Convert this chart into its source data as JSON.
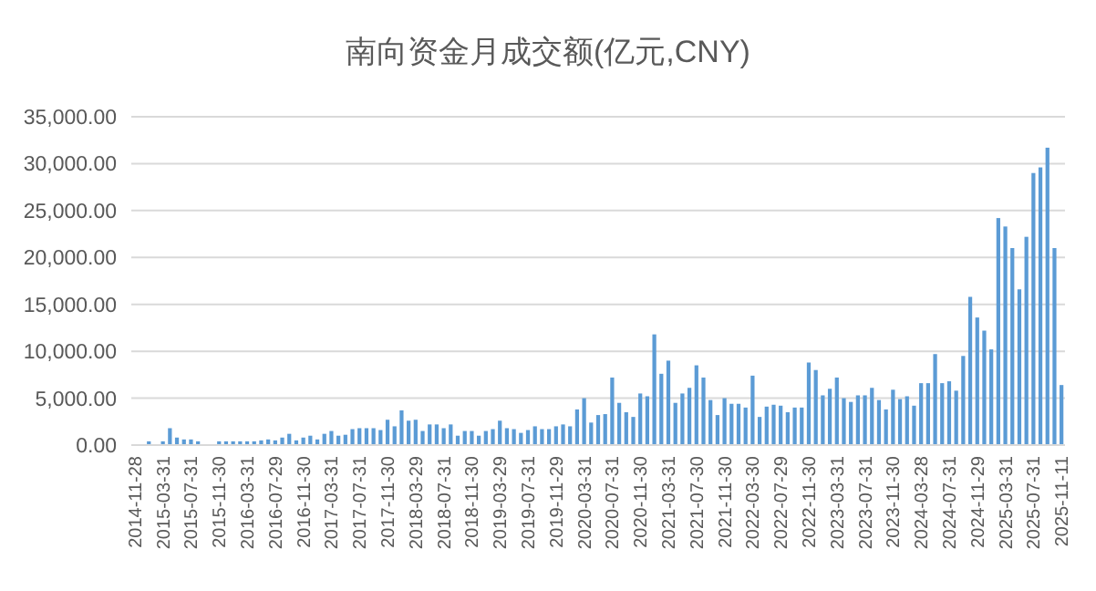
{
  "chart_data": {
    "type": "bar",
    "title": "南向资金月成交额(亿元,CNY)",
    "categories": [
      "2014-11-28",
      null,
      null,
      null,
      "2015-03-31",
      null,
      null,
      null,
      "2015-07-31",
      null,
      null,
      null,
      "2015-11-30",
      null,
      null,
      null,
      "2016-03-31",
      null,
      null,
      null,
      "2016-07-29",
      null,
      null,
      null,
      "2016-11-30",
      null,
      null,
      null,
      "2017-03-31",
      null,
      null,
      null,
      "2017-07-31",
      null,
      null,
      null,
      "2017-11-30",
      null,
      null,
      null,
      "2018-03-29",
      null,
      null,
      null,
      "2018-07-31",
      null,
      null,
      null,
      "2018-11-30",
      null,
      null,
      null,
      "2019-03-29",
      null,
      null,
      null,
      "2019-07-31",
      null,
      null,
      null,
      "2019-11-29",
      null,
      null,
      null,
      "2020-03-31",
      null,
      null,
      null,
      "2020-07-31",
      null,
      null,
      null,
      "2020-11-30",
      null,
      null,
      null,
      "2021-03-31",
      null,
      null,
      null,
      "2021-07-30",
      null,
      null,
      null,
      "2021-11-30",
      null,
      null,
      null,
      "2022-03-30",
      null,
      null,
      null,
      "2022-07-29",
      null,
      null,
      null,
      "2022-11-30",
      null,
      null,
      null,
      "2023-03-31",
      null,
      null,
      null,
      "2023-07-31",
      null,
      null,
      null,
      "2023-11-30",
      null,
      null,
      null,
      "2024-03-28",
      null,
      null,
      null,
      "2024-07-31",
      null,
      null,
      null,
      "2024-11-29",
      null,
      null,
      null,
      "2025-03-31",
      null,
      null,
      null,
      "2025-07-31",
      null,
      null,
      null,
      "2025-11-11"
    ],
    "values": [
      null,
      null,
      400,
      null,
      400,
      1800,
      800,
      600,
      600,
      400,
      null,
      null,
      400,
      400,
      400,
      400,
      400,
      400,
      500,
      600,
      500,
      800,
      1200,
      500,
      800,
      1000,
      600,
      1200,
      1500,
      1000,
      1100,
      1700,
      1800,
      1800,
      1800,
      1600,
      2700,
      2000,
      3700,
      2600,
      2700,
      1500,
      2200,
      2200,
      1800,
      2200,
      1000,
      1500,
      1500,
      1000,
      1500,
      1700,
      2600,
      1800,
      1700,
      1300,
      1600,
      2000,
      1700,
      1700,
      2000,
      2200,
      2000,
      3800,
      5000,
      2400,
      3200,
      3300,
      7200,
      4500,
      3500,
      3000,
      5500,
      5200,
      11800,
      7600,
      9000,
      4500,
      5500,
      6100,
      8500,
      7200,
      4800,
      3200,
      5000,
      4400,
      4400,
      4000,
      7400,
      3000,
      4100,
      4300,
      4200,
      3500,
      4000,
      4000,
      8800,
      8000,
      5300,
      6000,
      7200,
      5000,
      4600,
      5300,
      5300,
      6100,
      4800,
      3800,
      5900,
      4900,
      5200,
      4200,
      6600,
      6600,
      9700,
      6600,
      6800,
      5800,
      9500,
      15800,
      13600,
      12200,
      10200,
      24200,
      23300,
      21000,
      16600,
      22200,
      29000,
      29600,
      31700,
      21000,
      6400
    ],
    "color": "#5b9bd5",
    "ylim": [
      0,
      35000
    ],
    "yticks": [
      {
        "value": 0,
        "label": "0.00"
      },
      {
        "value": 5000,
        "label": "5,000.00"
      },
      {
        "value": 10000,
        "label": "10,000.00"
      },
      {
        "value": 15000,
        "label": "15,000.00"
      },
      {
        "value": 20000,
        "label": "20,000.00"
      },
      {
        "value": 25000,
        "label": "25,000.00"
      },
      {
        "value": 30000,
        "label": "30,000.00"
      },
      {
        "value": 35000,
        "label": "35,000.00"
      }
    ],
    "grid": "y"
  }
}
